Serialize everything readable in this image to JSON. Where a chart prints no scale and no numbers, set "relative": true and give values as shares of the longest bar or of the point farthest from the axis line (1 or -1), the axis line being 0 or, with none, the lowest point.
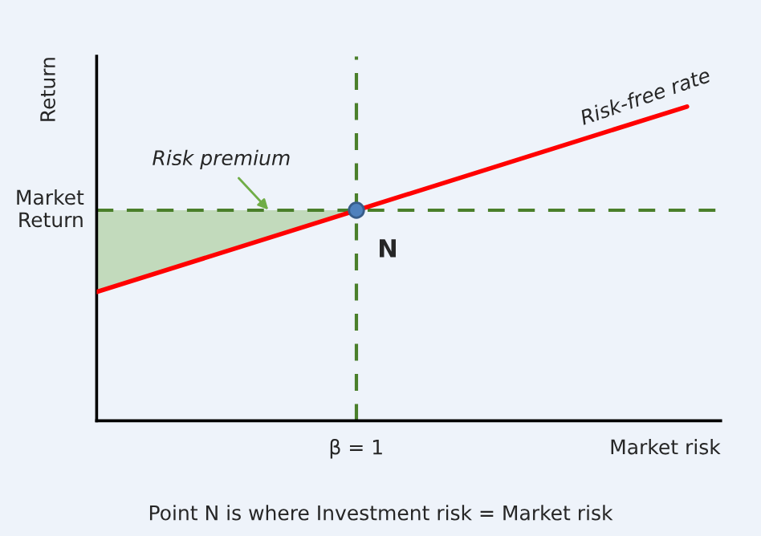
{
  "chart_data": {
    "type": "line",
    "relative": true,
    "xlabel": "Market risk",
    "ylabel": "Return",
    "categories": [
      null,
      null
    ],
    "series": [
      {
        "color": "#ff0000",
        "values": [
          0.41,
          1.0
        ]
      }
    ],
    "ref_lines": [
      {
        "axis": "y",
        "value": 0.67,
        "label": "Market\nReturn",
        "color": "#4a7f2a",
        "line_style": "dashed"
      }
    ],
    "annotations": [
      "N",
      "Risk-free rate",
      "Risk premium",
      "β = 1",
      "Point N is where Investment risk = Market risk"
    ]
  }
}
